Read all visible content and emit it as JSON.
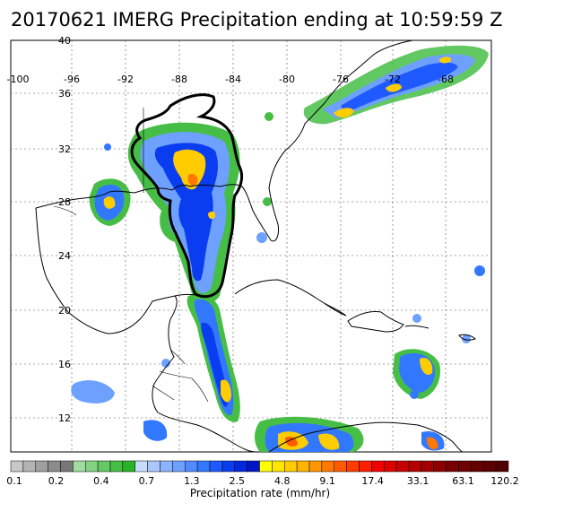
{
  "title": "20170621 IMERG Precipitation ending at 10:59:59 Z",
  "map": {
    "lon_labels": [
      "-100",
      "-96",
      "-92",
      "-88",
      "-84",
      "-80",
      "-76",
      "-72",
      "-68"
    ],
    "lat_labels": [
      "40",
      "36",
      "32",
      "28",
      "24",
      "20",
      "16",
      "12"
    ]
  },
  "colorbar": {
    "title": "Precipitation rate (mm/hr)",
    "tick_labels": [
      "0.1",
      "0.2",
      "0.4",
      "0.7",
      "1.3",
      "2.5",
      "4.8",
      "9.1",
      "17.4",
      "33.1",
      "63.1",
      "120.2"
    ],
    "colors": [
      "#c8c8c8",
      "#b4b4b4",
      "#a0a0a0",
      "#8c8c8c",
      "#787878",
      "#a0dca0",
      "#82d282",
      "#64c864",
      "#46be46",
      "#28b428",
      "#c8dcff",
      "#aac8ff",
      "#8cb4ff",
      "#6ea0ff",
      "#508cff",
      "#3278ff",
      "#1e5aff",
      "#0a3cf0",
      "#0028dc",
      "#0014c8",
      "#ffff00",
      "#ffe600",
      "#ffcc00",
      "#ffb400",
      "#ff9600",
      "#ff7800",
      "#ff5a00",
      "#ff3c00",
      "#ff1e00",
      "#f00000",
      "#dc0000",
      "#c80000",
      "#b40000",
      "#a00000",
      "#8c0000",
      "#780000",
      "#6e0000",
      "#640000",
      "#5a0000",
      "#500000"
    ]
  }
}
